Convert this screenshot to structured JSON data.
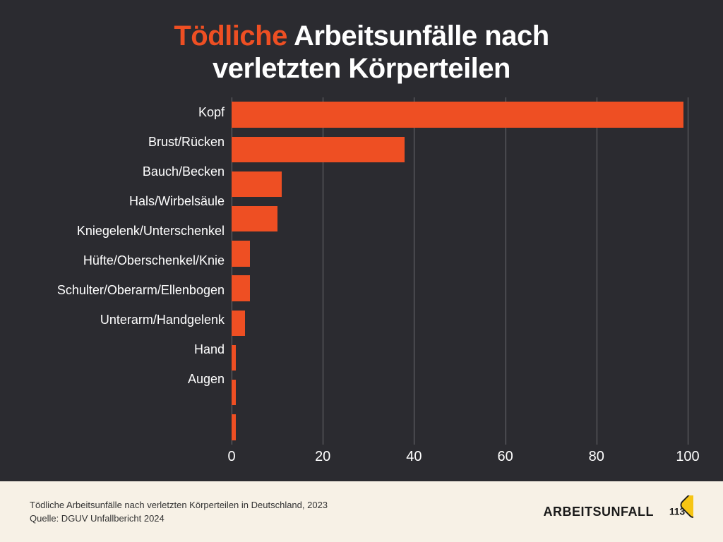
{
  "colors": {
    "background": "#2b2b30",
    "footer_bg": "#f7f1e6",
    "title_text": "#ffffff",
    "title_emph": "#ee4f23",
    "bar": "#ee4f23",
    "grid": "#6c6c70",
    "axis_text": "#ffffff",
    "footer_text": "#333333",
    "brand_text": "#1a1a1a",
    "sign_fill": "#f6c514",
    "sign_stroke": "#1a1a1a"
  },
  "layout": {
    "title_fontsize": 40,
    "category_fontsize": 18,
    "tick_fontsize": 20,
    "footer_fontsize": 13,
    "brand_fontsize": 18,
    "label_col_width": 278,
    "bar_row_height": 42
  },
  "title": {
    "emph": "Tödliche",
    "rest1": " Arbeitsunfälle nach",
    "line2": "verletzten Körperteilen"
  },
  "chart": {
    "type": "bar-horizontal",
    "xlim": [
      0,
      100
    ],
    "xticks": [
      0,
      20,
      40,
      60,
      80,
      100
    ],
    "categories": [
      "Kopf",
      "Brust/Rücken",
      "Bauch/Becken",
      "Hals/Wirbelsäule",
      "Kniegelenk/Unterschenkel",
      "Hüfte/Oberschenkel/Knie",
      "Schulter/Oberarm/Ellenbogen",
      "Unterarm/Handgelenk",
      "Hand",
      "Augen"
    ],
    "values": [
      99,
      38,
      11,
      10,
      4,
      4,
      3,
      1,
      1,
      1
    ]
  },
  "footer": {
    "line1": "Tödliche Arbeitsunfälle nach verletzten Körperteilen in Deutschland, 2023",
    "line2": "Quelle: DGUV Unfallbericht 2024"
  },
  "brand": {
    "word": "ARBEITSUNFALL",
    "sign_text": "113"
  }
}
